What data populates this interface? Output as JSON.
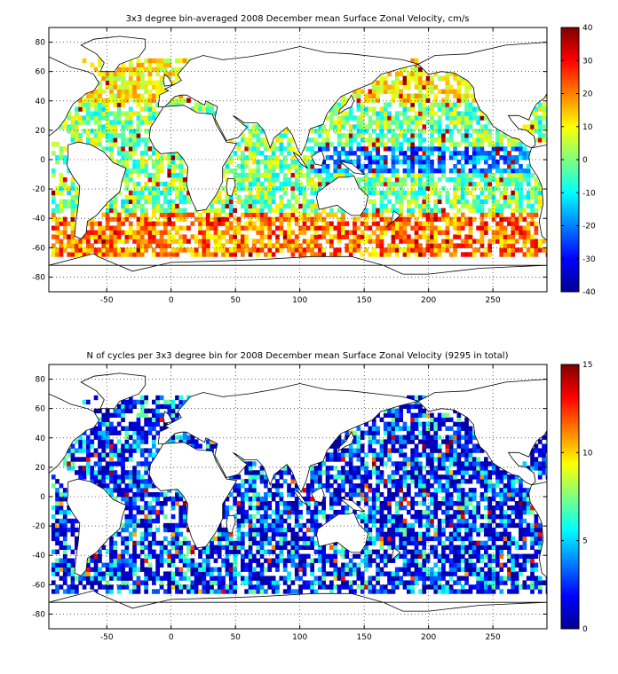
{
  "chart_data": [
    {
      "type": "heatmap",
      "title": "3x3 degree bin-averaged 2008 December mean Surface Zonal Velocity, cm/s",
      "xlim": [
        -95,
        292
      ],
      "ylim": [
        -90,
        90
      ],
      "xticks": [
        -50,
        0,
        50,
        100,
        150,
        200,
        250
      ],
      "yticks": [
        80,
        60,
        40,
        20,
        0,
        -20,
        -40,
        -60,
        -80
      ],
      "grid": true,
      "bin_size_deg": 3,
      "colormap": "jet",
      "colorbar": {
        "min": -40,
        "max": 40,
        "ticks": [
          40,
          30,
          20,
          10,
          0,
          -10,
          -20,
          -30,
          -40
        ]
      }
    },
    {
      "type": "heatmap",
      "title": "N of cycles per 3x3 degree bin for 2008 December mean Surface Zonal Velocity (9295 in total)",
      "xlim": [
        -95,
        292
      ],
      "ylim": [
        -90,
        90
      ],
      "xticks": [
        -50,
        0,
        50,
        100,
        150,
        200,
        250
      ],
      "yticks": [
        80,
        60,
        40,
        20,
        0,
        -20,
        -40,
        -60,
        -80
      ],
      "grid": true,
      "bin_size_deg": 3,
      "colormap": "jet",
      "total_cycles": 9295,
      "colorbar": {
        "min": 0,
        "max": 15,
        "ticks": [
          15,
          10,
          5,
          0
        ]
      }
    }
  ]
}
